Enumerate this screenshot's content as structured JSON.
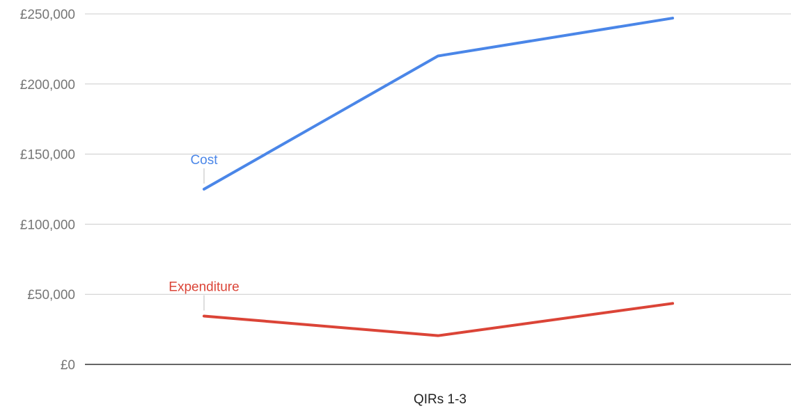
{
  "chart_data": {
    "type": "line",
    "title": "",
    "xlabel": "QIRs 1-3",
    "ylabel": "",
    "x": [
      1,
      2,
      3
    ],
    "ylim": [
      0,
      250000
    ],
    "yticks": [
      0,
      50000,
      100000,
      150000,
      200000,
      250000
    ],
    "ytick_labels": [
      "£0",
      "£50,000",
      "£100,000",
      "£150,000",
      "£200,000",
      "£250,000"
    ],
    "grid": true,
    "legend": "inline",
    "series": [
      {
        "name": "Cost",
        "color": "#4a86e8",
        "values": [
          125000,
          220000,
          247000
        ]
      },
      {
        "name": "Expenditure",
        "color": "#db4437",
        "values": [
          34500,
          20500,
          43500
        ]
      }
    ]
  }
}
